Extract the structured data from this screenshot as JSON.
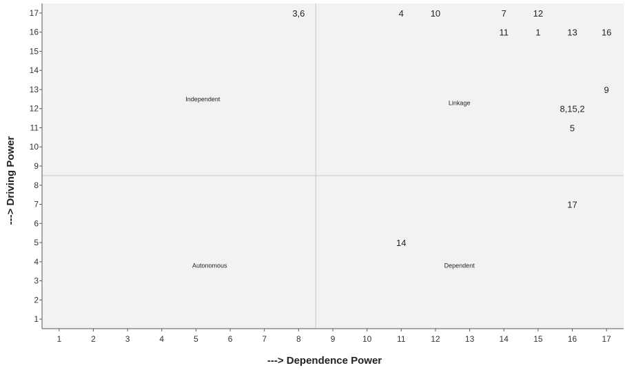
{
  "chart_data": {
    "type": "scatter",
    "title": "",
    "xlabel": "---> Dependence Power",
    "ylabel": "---> Driving Power",
    "xlim": [
      0.5,
      17.5
    ],
    "ylim": [
      0.5,
      17.5
    ],
    "xticks": [
      1,
      2,
      3,
      4,
      5,
      6,
      7,
      8,
      9,
      10,
      11,
      12,
      13,
      14,
      15,
      16,
      17
    ],
    "yticks": [
      1,
      2,
      3,
      4,
      5,
      6,
      7,
      8,
      9,
      10,
      11,
      12,
      13,
      14,
      15,
      16,
      17
    ],
    "divider_x": 8.5,
    "divider_y": 8.5,
    "quadrant_labels": [
      {
        "text": "Independent",
        "x": 5.2,
        "y": 12.5
      },
      {
        "text": "Linkage",
        "x": 12.7,
        "y": 12.3
      },
      {
        "text": "Autonomous",
        "x": 5.4,
        "y": 3.8
      },
      {
        "text": "Dependent",
        "x": 12.7,
        "y": 3.8
      }
    ],
    "points": [
      {
        "label": "3,6",
        "x": 8,
        "y": 17
      },
      {
        "label": "4",
        "x": 11,
        "y": 17
      },
      {
        "label": "10",
        "x": 12,
        "y": 17
      },
      {
        "label": "7",
        "x": 14,
        "y": 17
      },
      {
        "label": "12",
        "x": 15,
        "y": 17
      },
      {
        "label": "11",
        "x": 14,
        "y": 16
      },
      {
        "label": "1",
        "x": 15,
        "y": 16
      },
      {
        "label": "13",
        "x": 16,
        "y": 16
      },
      {
        "label": "16",
        "x": 17,
        "y": 16
      },
      {
        "label": "9",
        "x": 17,
        "y": 13
      },
      {
        "label": "8,15,2",
        "x": 16,
        "y": 12
      },
      {
        "label": "5",
        "x": 16,
        "y": 11
      },
      {
        "label": "17",
        "x": 16,
        "y": 7
      },
      {
        "label": "14",
        "x": 11,
        "y": 5
      }
    ],
    "grid": false,
    "colors": {
      "plot_background": "#f2f2f2",
      "divider": "#c8c8c8",
      "axis": "#555555"
    }
  }
}
